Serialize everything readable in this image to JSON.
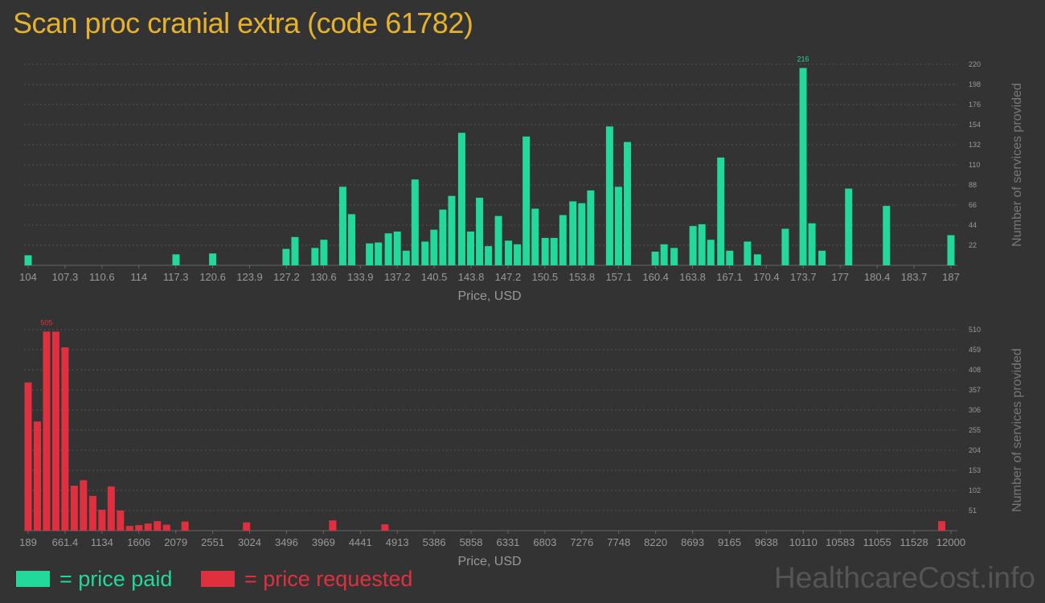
{
  "title": "Scan proc cranial extra (code 61782)",
  "colors": {
    "background": "#333333",
    "title": "#e5b22a",
    "paid": "#22d89a",
    "requested": "#e0303f",
    "axis_text": "#999999",
    "gridline": "#555555"
  },
  "legend": {
    "paid": "= price paid",
    "requested": "= price requested"
  },
  "watermark": "HealthcareCost.info",
  "chart_data": [
    {
      "type": "bar",
      "name": "price-paid",
      "color": "#22d89a",
      "xlabel": "Price, USD",
      "ylabel": "Number of services provided",
      "xlim": [
        104,
        187
      ],
      "ylim": [
        0,
        220
      ],
      "grid": true,
      "x_ticks": [
        "104",
        "107.3",
        "110.6",
        "114",
        "117.3",
        "120.6",
        "123.9",
        "127.2",
        "130.6",
        "133.9",
        "137.2",
        "140.5",
        "143.8",
        "147.2",
        "150.5",
        "153.8",
        "157.1",
        "160.4",
        "163.8",
        "167.1",
        "170.4",
        "173.7",
        "177",
        "180.4",
        "183.7",
        "187"
      ],
      "y_ticks": [
        "22",
        "44",
        "66",
        "88",
        "110",
        "132",
        "154",
        "176",
        "198",
        "220"
      ],
      "peak_label": "216",
      "bars": [
        {
          "x": 104.0,
          "y": 11
        },
        {
          "x": 117.3,
          "y": 12
        },
        {
          "x": 120.6,
          "y": 13
        },
        {
          "x": 127.2,
          "y": 18
        },
        {
          "x": 128.0,
          "y": 31
        },
        {
          "x": 129.8,
          "y": 19
        },
        {
          "x": 130.6,
          "y": 28
        },
        {
          "x": 132.3,
          "y": 86
        },
        {
          "x": 133.1,
          "y": 56
        },
        {
          "x": 134.7,
          "y": 24
        },
        {
          "x": 135.5,
          "y": 25
        },
        {
          "x": 136.4,
          "y": 35
        },
        {
          "x": 137.2,
          "y": 37
        },
        {
          "x": 138.0,
          "y": 16
        },
        {
          "x": 138.8,
          "y": 94
        },
        {
          "x": 139.7,
          "y": 26
        },
        {
          "x": 140.5,
          "y": 39
        },
        {
          "x": 141.3,
          "y": 61
        },
        {
          "x": 142.1,
          "y": 76
        },
        {
          "x": 143.0,
          "y": 145
        },
        {
          "x": 143.8,
          "y": 37
        },
        {
          "x": 144.6,
          "y": 74
        },
        {
          "x": 145.4,
          "y": 21
        },
        {
          "x": 146.3,
          "y": 54
        },
        {
          "x": 147.2,
          "y": 27
        },
        {
          "x": 148.0,
          "y": 23
        },
        {
          "x": 148.8,
          "y": 141
        },
        {
          "x": 149.6,
          "y": 62
        },
        {
          "x": 150.5,
          "y": 30
        },
        {
          "x": 151.3,
          "y": 30
        },
        {
          "x": 152.1,
          "y": 55
        },
        {
          "x": 153.0,
          "y": 70
        },
        {
          "x": 153.8,
          "y": 68
        },
        {
          "x": 154.6,
          "y": 82
        },
        {
          "x": 156.3,
          "y": 152
        },
        {
          "x": 157.1,
          "y": 86
        },
        {
          "x": 157.9,
          "y": 135
        },
        {
          "x": 160.4,
          "y": 15
        },
        {
          "x": 161.2,
          "y": 23
        },
        {
          "x": 162.1,
          "y": 19
        },
        {
          "x": 163.8,
          "y": 43
        },
        {
          "x": 164.6,
          "y": 45
        },
        {
          "x": 165.4,
          "y": 28
        },
        {
          "x": 166.3,
          "y": 118
        },
        {
          "x": 167.1,
          "y": 16
        },
        {
          "x": 168.7,
          "y": 26
        },
        {
          "x": 169.6,
          "y": 12
        },
        {
          "x": 172.1,
          "y": 40
        },
        {
          "x": 173.7,
          "y": 216
        },
        {
          "x": 174.5,
          "y": 46
        },
        {
          "x": 175.4,
          "y": 16
        },
        {
          "x": 177.8,
          "y": 84
        },
        {
          "x": 181.2,
          "y": 65
        },
        {
          "x": 187.0,
          "y": 33
        }
      ]
    },
    {
      "type": "bar",
      "name": "price-requested",
      "color": "#e0303f",
      "xlabel": "Price, USD",
      "ylabel": "Number of services provided",
      "xlim": [
        189,
        12000
      ],
      "ylim": [
        0,
        510
      ],
      "grid": true,
      "x_ticks": [
        "189",
        "661.4",
        "1134",
        "1606",
        "2079",
        "2551",
        "3024",
        "3496",
        "3969",
        "4441",
        "4913",
        "5386",
        "5858",
        "6331",
        "6803",
        "7276",
        "7748",
        "8220",
        "8693",
        "9165",
        "9638",
        "10110",
        "10583",
        "11055",
        "11528",
        "12000"
      ],
      "y_ticks": [
        "51",
        "102",
        "153",
        "204",
        "255",
        "306",
        "357",
        "408",
        "459",
        "510"
      ],
      "peak_label": "505",
      "bars": [
        {
          "x": 189,
          "y": 376
        },
        {
          "x": 307,
          "y": 277
        },
        {
          "x": 425,
          "y": 505
        },
        {
          "x": 543,
          "y": 505
        },
        {
          "x": 661,
          "y": 465
        },
        {
          "x": 779,
          "y": 114
        },
        {
          "x": 897,
          "y": 128
        },
        {
          "x": 1016,
          "y": 88
        },
        {
          "x": 1134,
          "y": 53
        },
        {
          "x": 1252,
          "y": 112
        },
        {
          "x": 1370,
          "y": 51
        },
        {
          "x": 1488,
          "y": 12
        },
        {
          "x": 1606,
          "y": 14
        },
        {
          "x": 1724,
          "y": 18
        },
        {
          "x": 1843,
          "y": 24
        },
        {
          "x": 1961,
          "y": 15
        },
        {
          "x": 2197,
          "y": 23
        },
        {
          "x": 2984,
          "y": 21
        },
        {
          "x": 4087,
          "y": 26
        },
        {
          "x": 4755,
          "y": 16
        },
        {
          "x": 11882,
          "y": 24
        }
      ]
    }
  ]
}
